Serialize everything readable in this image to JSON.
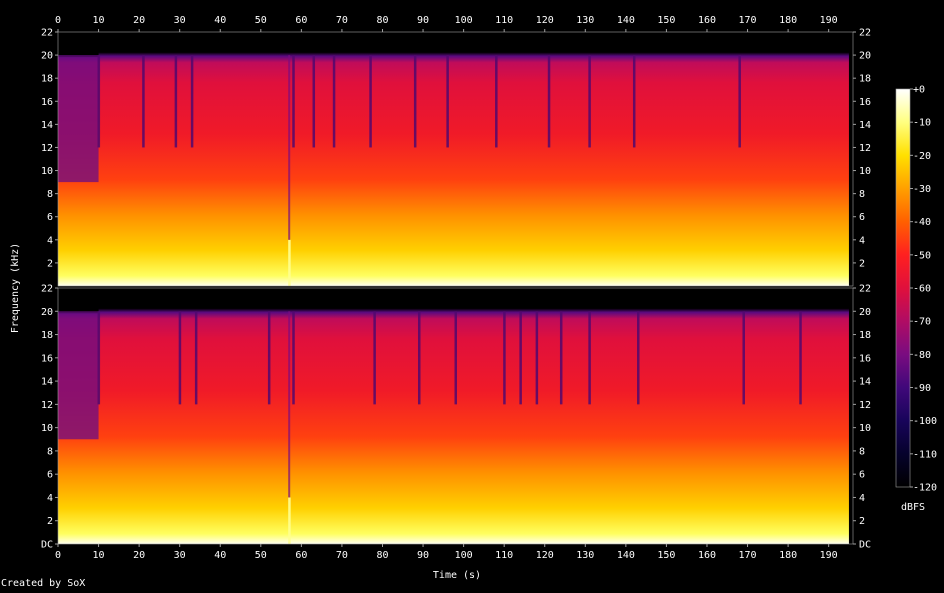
{
  "chart_data": {
    "type": "heatmap",
    "title": "",
    "xlabel": "Time (s)",
    "ylabel": "Frequency (kHz)",
    "xlim": [
      0,
      196
    ],
    "ylim": [
      0,
      22
    ],
    "x_ticks": [
      "0",
      "10",
      "20",
      "30",
      "40",
      "50",
      "60",
      "70",
      "80",
      "90",
      "100",
      "110",
      "120",
      "130",
      "140",
      "150",
      "160",
      "170",
      "180",
      "190"
    ],
    "y_ticks_top": [
      "2",
      "4",
      "6",
      "8",
      "10",
      "12",
      "14",
      "16",
      "18",
      "20",
      "22"
    ],
    "y_ticks_bottom": [
      "DC",
      "2",
      "4",
      "6",
      "8",
      "10",
      "12",
      "14",
      "16",
      "18",
      "20",
      "22"
    ],
    "channels": [
      {
        "cutoff_khz": 20,
        "audio_end_s": 195,
        "bright_columns_s": [
          57
        ],
        "quiet_segments_s": [
          [
            0,
            10
          ]
        ],
        "dark_notches_s": [
          10,
          21,
          29,
          33,
          58,
          63,
          68,
          77,
          88,
          96,
          108,
          121,
          131,
          142,
          168
        ]
      },
      {
        "cutoff_khz": 20,
        "audio_end_s": 195,
        "bright_columns_s": [
          57
        ],
        "quiet_segments_s": [
          [
            0,
            10
          ]
        ],
        "dark_notches_s": [
          10,
          30,
          34,
          52,
          58,
          78,
          89,
          98,
          110,
          114,
          118,
          124,
          131,
          143,
          169,
          183
        ]
      }
    ],
    "colorbar": {
      "label": "dBFS",
      "range": [
        -120,
        0
      ],
      "ticks": [
        "+0",
        "-10",
        "-20",
        "-30",
        "-40",
        "-50",
        "-60",
        "-70",
        "-80",
        "-90",
        "-100",
        "-110",
        "-120"
      ],
      "colors": [
        "#ffffff",
        "#ffff80",
        "#ffe000",
        "#ffa000",
        "#ff6000",
        "#ff2020",
        "#e0103c",
        "#b00c64",
        "#7a0c80",
        "#40087a",
        "#18045a",
        "#06022c",
        "#000000"
      ]
    },
    "grid": false
  },
  "footer": {
    "credit": "Created by SoX"
  }
}
